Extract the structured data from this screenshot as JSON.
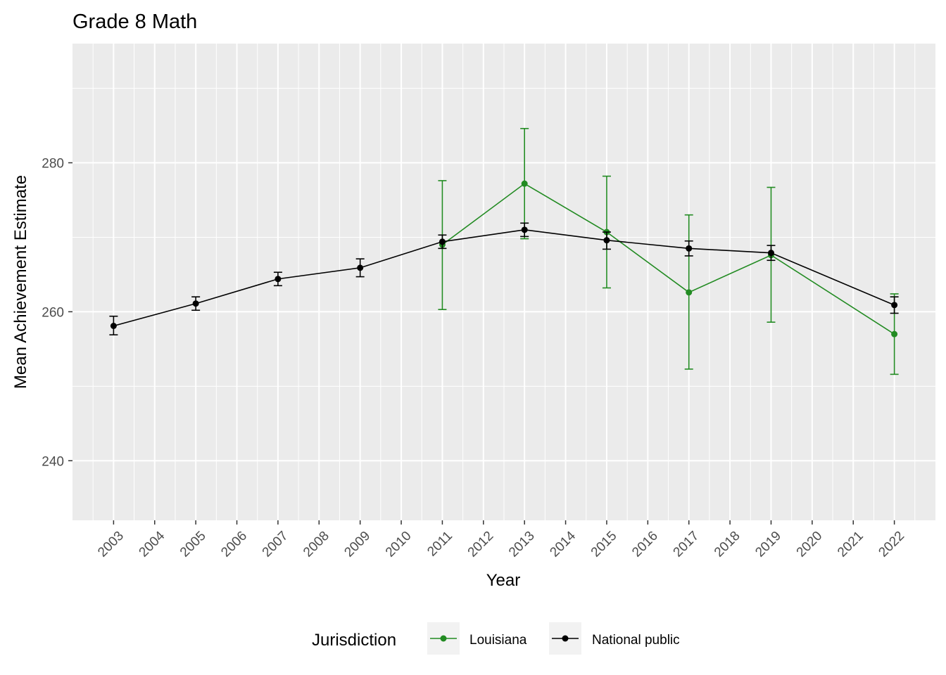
{
  "chart_data": {
    "type": "line",
    "title": "Grade 8 Math",
    "xlabel": "Year",
    "ylabel": "Mean Achievement Estimate",
    "x": [
      2003,
      2004,
      2005,
      2006,
      2007,
      2008,
      2009,
      2010,
      2011,
      2012,
      2013,
      2014,
      2015,
      2016,
      2017,
      2018,
      2019,
      2020,
      2021,
      2022
    ],
    "xlim": [
      2002,
      2023
    ],
    "ylim": [
      232,
      296
    ],
    "yticks": [
      240,
      260,
      280
    ],
    "grid": true,
    "legend": {
      "title": "Jurisdiction",
      "position": "bottom"
    },
    "series": [
      {
        "name": "Louisiana",
        "color": "#228b22",
        "points": [
          {
            "x": 2011,
            "y": 269.0,
            "lo": 260.3,
            "hi": 277.6
          },
          {
            "x": 2013,
            "y": 277.2,
            "lo": 269.8,
            "hi": 284.6
          },
          {
            "x": 2015,
            "y": 270.7,
            "lo": 263.2,
            "hi": 278.2
          },
          {
            "x": 2017,
            "y": 262.6,
            "lo": 252.3,
            "hi": 273.0
          },
          {
            "x": 2019,
            "y": 267.6,
            "lo": 258.6,
            "hi": 276.7
          },
          {
            "x": 2022,
            "y": 257.0,
            "lo": 251.6,
            "hi": 262.4
          }
        ]
      },
      {
        "name": "National public",
        "color": "#000000",
        "points": [
          {
            "x": 2003,
            "y": 258.1,
            "lo": 256.9,
            "hi": 259.4
          },
          {
            "x": 2005,
            "y": 261.1,
            "lo": 260.2,
            "hi": 262.0
          },
          {
            "x": 2007,
            "y": 264.4,
            "lo": 263.5,
            "hi": 265.3
          },
          {
            "x": 2009,
            "y": 265.9,
            "lo": 264.7,
            "hi": 267.1
          },
          {
            "x": 2011,
            "y": 269.4,
            "lo": 268.5,
            "hi": 270.3
          },
          {
            "x": 2013,
            "y": 271.0,
            "lo": 270.1,
            "hi": 271.9
          },
          {
            "x": 2015,
            "y": 269.6,
            "lo": 268.4,
            "hi": 270.7
          },
          {
            "x": 2017,
            "y": 268.5,
            "lo": 267.5,
            "hi": 269.5
          },
          {
            "x": 2019,
            "y": 267.9,
            "lo": 266.9,
            "hi": 268.9
          },
          {
            "x": 2022,
            "y": 260.9,
            "lo": 259.8,
            "hi": 262.0
          }
        ]
      }
    ]
  }
}
